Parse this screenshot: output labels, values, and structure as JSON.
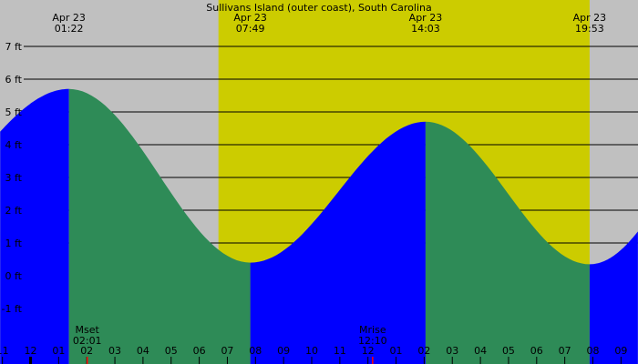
{
  "chart_data": {
    "type": "area",
    "title": "Sullivans Island (outer coast), South Carolina",
    "y_unit": "ft",
    "ylim": [
      -1,
      7
    ],
    "y_ticks": [
      -1,
      0,
      1,
      2,
      3,
      4,
      5,
      6,
      7
    ],
    "y_tick_labels": [
      "-1 ft",
      "0 ft",
      "1 ft",
      "2 ft",
      "3 ft",
      "4 ft",
      "5 ft",
      "6 ft",
      "7 ft"
    ],
    "x_range_hours": [
      -1.08,
      21.6
    ],
    "x_tick_labels": [
      "11",
      "12",
      "01",
      "02",
      "03",
      "04",
      "05",
      "06",
      "07",
      "08",
      "09",
      "10",
      "11",
      "12",
      "01",
      "02",
      "03",
      "04",
      "05",
      "06",
      "07",
      "08",
      "09"
    ],
    "extremes": [
      {
        "date": "Apr 23",
        "time": "01:22",
        "type": "high",
        "height_ft": 5.7
      },
      {
        "date": "Apr 23",
        "time": "07:49",
        "type": "low",
        "height_ft": 0.4
      },
      {
        "date": "Apr 23",
        "time": "14:03",
        "type": "high",
        "height_ft": 4.7
      },
      {
        "date": "Apr 23",
        "time": "19:53",
        "type": "low",
        "height_ft": 0.35
      }
    ],
    "edge_heights_ft": {
      "start": 4.4,
      "end": 1.35
    },
    "daylight": {
      "start": "06:41",
      "end": "19:53"
    },
    "moon_events": [
      {
        "label": "Mset",
        "time": "02:01"
      },
      {
        "label": "Mrise",
        "time": "12:10"
      }
    ],
    "colors": {
      "rising": "#0000ff",
      "falling": "#2e8b57",
      "day": "#cccc00",
      "night": "#c0c0c0",
      "moon_tick": "#ff0000"
    },
    "grid": true
  }
}
